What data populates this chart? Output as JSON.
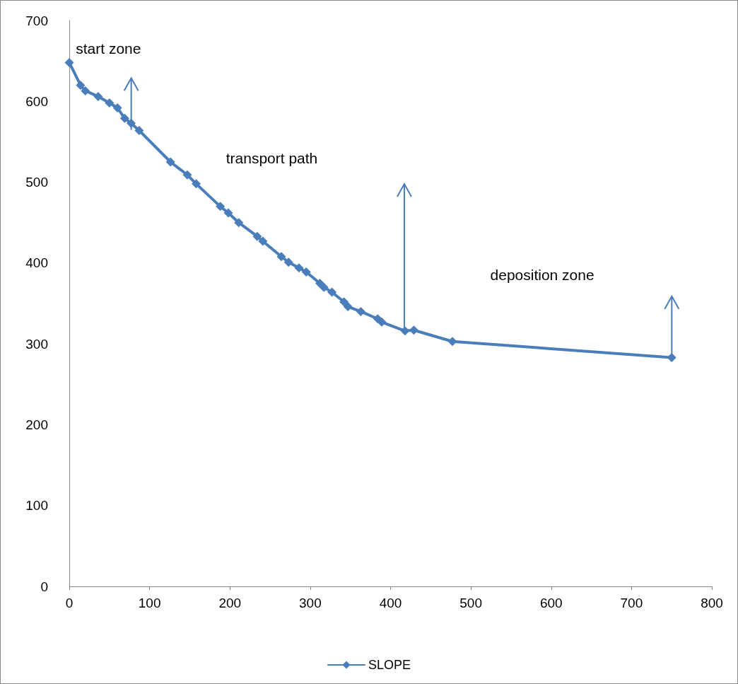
{
  "chart_data": {
    "type": "line",
    "x": [
      0,
      14,
      20,
      36,
      50,
      60,
      69,
      77,
      87,
      126,
      147,
      158,
      188,
      198,
      211,
      234,
      241,
      264,
      273,
      286,
      295,
      312,
      317,
      327,
      342,
      347,
      363,
      384,
      389,
      418,
      429,
      477,
      750
    ],
    "series": [
      {
        "name": "SLOPE",
        "color": "#4a7ebb",
        "values": [
          648,
          620,
          613,
          606,
          598,
          592,
          579,
          573,
          564,
          525,
          509,
          498,
          470,
          462,
          450,
          433,
          427,
          408,
          401,
          394,
          389,
          375,
          370,
          364,
          352,
          346,
          340,
          331,
          327,
          316,
          317,
          303,
          283
        ]
      }
    ],
    "xlim": [
      0,
      800
    ],
    "xticks": [
      0,
      100,
      200,
      300,
      400,
      500,
      600,
      700,
      800
    ],
    "ylim": [
      0,
      700
    ],
    "yticks": [
      0,
      100,
      200,
      300,
      400,
      500,
      600,
      700
    ],
    "grid": false,
    "legend": "bottom",
    "marker": "diamond",
    "line_style": "solid",
    "annotations": [
      "start zone",
      "transport path",
      "deposition zone"
    ]
  }
}
